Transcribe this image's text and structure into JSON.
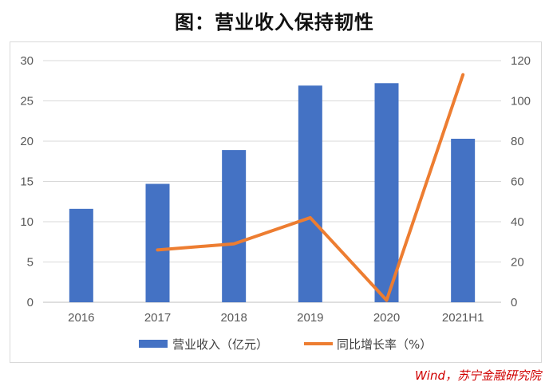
{
  "title": "图：营业收入保持韧性",
  "source": "Wind，苏宁金融研究院",
  "chart_data": {
    "type": "bar",
    "categories": [
      "2016",
      "2017",
      "2018",
      "2019",
      "2020",
      "2021H1"
    ],
    "series": [
      {
        "name": "营业收入（亿元）",
        "type": "bar",
        "axis": "left",
        "color": "#4472C4",
        "values": [
          11.6,
          14.7,
          18.9,
          26.9,
          27.2,
          20.3
        ]
      },
      {
        "name": "同比增长率（%）",
        "type": "line",
        "axis": "right",
        "color": "#ED7D31",
        "values": [
          null,
          26,
          29,
          42,
          1,
          113
        ]
      }
    ],
    "y_left": {
      "min": 0,
      "max": 30,
      "ticks": [
        0,
        5,
        10,
        15,
        20,
        25,
        30
      ]
    },
    "y_right": {
      "min": 0,
      "max": 120,
      "ticks": [
        0,
        20,
        40,
        60,
        80,
        100,
        120
      ]
    },
    "grid": true,
    "legend_position": "bottom"
  }
}
